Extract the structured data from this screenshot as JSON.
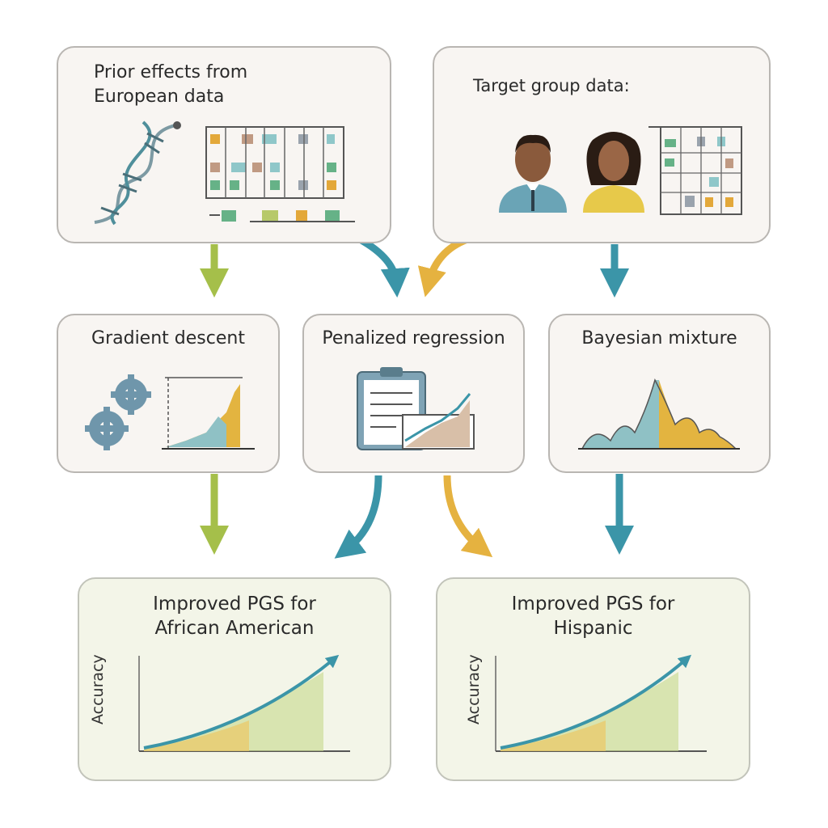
{
  "boxes": {
    "prior": {
      "title_line1": "Prior effects from",
      "title_line2": "European data"
    },
    "target": {
      "title": "Target group data:"
    },
    "gradient": {
      "title": "Gradient descent"
    },
    "penalized": {
      "title": "Penalized regression"
    },
    "bayesian": {
      "title": "Bayesian mixture"
    },
    "african": {
      "title_line1": "Improved PGS for",
      "title_line2": "African American",
      "ylabel": "Accuracy"
    },
    "hispanic": {
      "title_line1": "Improved PGS for",
      "title_line2": "Hispanic",
      "ylabel": "Accuracy"
    }
  },
  "colors": {
    "green": "#a5bf4a",
    "teal": "#3b95a8",
    "yellow": "#e5b240",
    "box_bg": "#f8f5f2",
    "result_bg": "#f3f5e8"
  },
  "icons": [
    "dna-icon",
    "data-grid-icon",
    "person-male-icon",
    "person-female-icon",
    "gears-icon",
    "clipboard-icon",
    "bar-chart-icon",
    "distribution-curve-icon"
  ]
}
